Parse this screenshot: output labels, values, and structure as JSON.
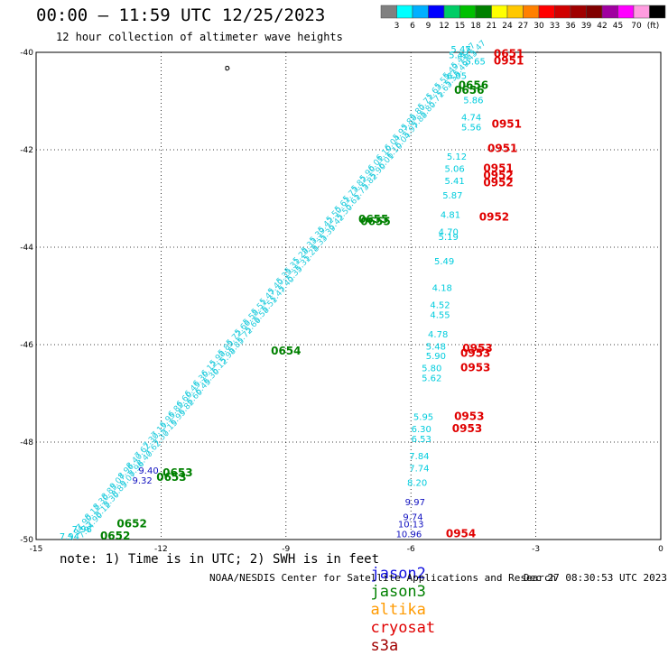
{
  "title": "00:00 — 11:59 UTC 12/25/2023",
  "subtitle": "12 hour collection of altimeter wave heights",
  "note": "note: 1) Time is in UTC; 2) SWH is in feet",
  "credit": "NOAA/NESDIS Center for Satellite Applications and Research",
  "timestamp": "Dec 27 08:30:53 UTC 2023",
  "colorbar": {
    "unit": "(ft)",
    "colors": [
      "#808080",
      "#00ffff",
      "#00b0ff",
      "#0000ff",
      "#00cd66",
      "#00c000",
      "#008000",
      "#ffff00",
      "#ffc800",
      "#ff8000",
      "#ff0000",
      "#d00000",
      "#a00000",
      "#800000",
      "#a000a0",
      "#ff00ff",
      "#ff9ce0",
      "#000000"
    ],
    "labels": [
      "3",
      "6",
      "9",
      "12",
      "15",
      "18",
      "21",
      "24",
      "27",
      "30",
      "33",
      "36",
      "39",
      "42",
      "45",
      "70"
    ]
  },
  "axes": {
    "x_ticks": [
      {
        "value": -15,
        "label": "-15"
      },
      {
        "value": -12,
        "label": "-12"
      },
      {
        "value": -9,
        "label": "-9"
      },
      {
        "value": -6,
        "label": "-6"
      },
      {
        "value": -3,
        "label": "-3"
      },
      {
        "value": 0,
        "label": "0"
      }
    ],
    "y_ticks": [
      {
        "value": -40,
        "label": "-40"
      },
      {
        "value": -42,
        "label": "-42"
      },
      {
        "value": -44,
        "label": "-44"
      },
      {
        "value": -46,
        "label": "-46"
      },
      {
        "value": -48,
        "label": "-48"
      },
      {
        "value": -50,
        "label": "-50"
      }
    ],
    "x_range": [
      -15,
      0
    ],
    "y_range": [
      -50,
      -40
    ]
  },
  "satellites": [
    {
      "name": "jason2",
      "color": "#1010e0"
    },
    {
      "name": "jason3",
      "color": "#008000"
    },
    {
      "name": "altika",
      "color": "#ff9a00"
    },
    {
      "name": "cryosat",
      "color": "#e00000"
    },
    {
      "name": "s3a",
      "color": "#a00000"
    }
  ],
  "track_labels": [
    {
      "text": "0651",
      "lon": -3.65,
      "lat": -40.1,
      "color": "#e00000"
    },
    {
      "text": "0951",
      "lon": -3.65,
      "lat": -40.25,
      "color": "#e00000"
    },
    {
      "text": "0656",
      "lon": -4.5,
      "lat": -40.75,
      "color": "#008000"
    },
    {
      "text": "0656",
      "lon": -4.6,
      "lat": -40.85,
      "color": "#008000"
    },
    {
      "text": "0951",
      "lon": -3.7,
      "lat": -41.55,
      "color": "#e00000"
    },
    {
      "text": "0951",
      "lon": -3.8,
      "lat": -42.05,
      "color": "#e00000"
    },
    {
      "text": "0951",
      "lon": -3.9,
      "lat": -42.45,
      "color": "#e00000"
    },
    {
      "text": "0952",
      "lon": -3.9,
      "lat": -42.6,
      "color": "#e00000"
    },
    {
      "text": "0952",
      "lon": -3.9,
      "lat": -42.75,
      "color": "#e00000"
    },
    {
      "text": "0952",
      "lon": -4.0,
      "lat": -43.45,
      "color": "#e00000"
    },
    {
      "text": "0655",
      "lon": -6.9,
      "lat": -43.5,
      "color": "#008000"
    },
    {
      "text": "0655",
      "lon": -6.85,
      "lat": -43.55,
      "color": "#008000"
    },
    {
      "text": "0654",
      "lon": -9.0,
      "lat": -46.2,
      "color": "#008000"
    },
    {
      "text": "0953",
      "lon": -4.4,
      "lat": -46.15,
      "color": "#e00000"
    },
    {
      "text": "0953",
      "lon": -4.45,
      "lat": -46.25,
      "color": "#e00000"
    },
    {
      "text": "0953",
      "lon": -4.45,
      "lat": -46.55,
      "color": "#e00000"
    },
    {
      "text": "0953",
      "lon": -4.6,
      "lat": -47.55,
      "color": "#e00000"
    },
    {
      "text": "0953",
      "lon": -4.65,
      "lat": -47.8,
      "color": "#e00000"
    },
    {
      "text": "0653",
      "lon": -11.6,
      "lat": -48.7,
      "color": "#008000"
    },
    {
      "text": "0653",
      "lon": -11.75,
      "lat": -48.8,
      "color": "#008000"
    },
    {
      "text": "0652",
      "lon": -12.7,
      "lat": -49.75,
      "color": "#008000"
    },
    {
      "text": "0652",
      "lon": -13.1,
      "lat": -50.0,
      "color": "#008000"
    },
    {
      "text": "0954",
      "lon": -4.8,
      "lat": -49.95,
      "color": "#e00000"
    }
  ],
  "swh_values": [
    {
      "text": "5.47",
      "lon": -4.8,
      "lat": -40.0,
      "color": "#00ccdd"
    },
    {
      "text": "5.43",
      "lon": -4.85,
      "lat": -40.12,
      "color": "#00ccdd"
    },
    {
      "text": "5.65",
      "lon": -4.45,
      "lat": -40.25,
      "color": "#00ccdd"
    },
    {
      "text": "6.05",
      "lon": -4.9,
      "lat": -40.55,
      "color": "#00ccdd"
    },
    {
      "text": "5.86",
      "lon": -4.5,
      "lat": -41.05,
      "color": "#00ccdd"
    },
    {
      "text": "4.74",
      "lon": -4.55,
      "lat": -41.4,
      "color": "#00ccdd"
    },
    {
      "text": "5.56",
      "lon": -4.55,
      "lat": -41.6,
      "color": "#00ccdd"
    },
    {
      "text": "5.12",
      "lon": -4.9,
      "lat": -42.2,
      "color": "#00ccdd"
    },
    {
      "text": "5.06",
      "lon": -4.95,
      "lat": -42.45,
      "color": "#00ccdd"
    },
    {
      "text": "5.41",
      "lon": -4.95,
      "lat": -42.7,
      "color": "#00ccdd"
    },
    {
      "text": "5.87",
      "lon": -5.0,
      "lat": -43.0,
      "color": "#00ccdd"
    },
    {
      "text": "4.81",
      "lon": -5.05,
      "lat": -43.4,
      "color": "#00ccdd"
    },
    {
      "text": "4.70",
      "lon": -5.1,
      "lat": -43.75,
      "color": "#00ccdd"
    },
    {
      "text": "5.19",
      "lon": -5.1,
      "lat": -43.85,
      "color": "#00ccdd"
    },
    {
      "text": "5.49",
      "lon": -5.2,
      "lat": -44.35,
      "color": "#00ccdd"
    },
    {
      "text": "4.18",
      "lon": -5.25,
      "lat": -44.9,
      "color": "#00ccdd"
    },
    {
      "text": "4.52",
      "lon": -5.3,
      "lat": -45.25,
      "color": "#00ccdd"
    },
    {
      "text": "4.55",
      "lon": -5.3,
      "lat": -45.45,
      "color": "#00ccdd"
    },
    {
      "text": "4.78",
      "lon": -5.35,
      "lat": -45.85,
      "color": "#00ccdd"
    },
    {
      "text": "5.48",
      "lon": -5.4,
      "lat": -46.1,
      "color": "#00ccdd"
    },
    {
      "text": "5.90",
      "lon": -5.4,
      "lat": -46.3,
      "color": "#00ccdd"
    },
    {
      "text": "5.80",
      "lon": -5.5,
      "lat": -46.55,
      "color": "#00ccdd"
    },
    {
      "text": "5.62",
      "lon": -5.5,
      "lat": -46.75,
      "color": "#00ccdd"
    },
    {
      "text": "5.95",
      "lon": -5.7,
      "lat": -47.55,
      "color": "#00ccdd"
    },
    {
      "text": "6.30",
      "lon": -5.75,
      "lat": -47.8,
      "color": "#00ccdd"
    },
    {
      "text": "6.53",
      "lon": -5.75,
      "lat": -48.0,
      "color": "#00ccdd"
    },
    {
      "text": "7.84",
      "lon": -5.8,
      "lat": -48.35,
      "color": "#00ccdd"
    },
    {
      "text": "7.74",
      "lon": -5.8,
      "lat": -48.6,
      "color": "#00ccdd"
    },
    {
      "text": "8.20",
      "lon": -5.85,
      "lat": -48.9,
      "color": "#00ccdd"
    },
    {
      "text": "9.97",
      "lon": -5.9,
      "lat": -49.3,
      "color": "#1010c0"
    },
    {
      "text": "9.74",
      "lon": -5.95,
      "lat": -49.6,
      "color": "#1010c0"
    },
    {
      "text": "10.13",
      "lon": -6.0,
      "lat": -49.75,
      "color": "#1010c0"
    },
    {
      "text": "10.96",
      "lon": -6.05,
      "lat": -49.95,
      "color": "#1010c0"
    },
    {
      "text": "7.94",
      "lon": -14.2,
      "lat": -50.0,
      "color": "#00ccdd"
    },
    {
      "text": "7.96",
      "lon": -13.9,
      "lat": -49.85,
      "color": "#00ccdd"
    },
    {
      "text": "9.40",
      "lon": -12.3,
      "lat": -48.65,
      "color": "#1010c0"
    },
    {
      "text": "9.32",
      "lon": -12.45,
      "lat": -48.85,
      "color": "#1010c0"
    }
  ],
  "track": {
    "start": {
      "lon": -14.0,
      "lat": -49.9
    },
    "end": {
      "lon": -4.6,
      "lat": -40.0
    },
    "sample_values": [
      "7.94",
      "7.90",
      "8.12",
      "8.30",
      "8.85",
      "9.07",
      "8.96",
      "8.40",
      "7.62",
      "7.30",
      "7.15",
      "6.95",
      "6.82",
      "6.60",
      "6.45",
      "6.30",
      "6.12",
      "5.98",
      "5.85",
      "5.72",
      "5.66",
      "5.58",
      "5.51",
      "5.47",
      "5.40",
      "5.35",
      "5.31",
      "5.28",
      "5.33",
      "5.39",
      "5.42",
      "5.50",
      "5.61",
      "5.73",
      "5.82",
      "5.90",
      "6.01",
      "6.10",
      "6.04",
      "5.97",
      "5.88",
      "5.80",
      "5.71",
      "5.63",
      "5.55",
      "5.49",
      "5.43",
      "5.47"
    ]
  }
}
